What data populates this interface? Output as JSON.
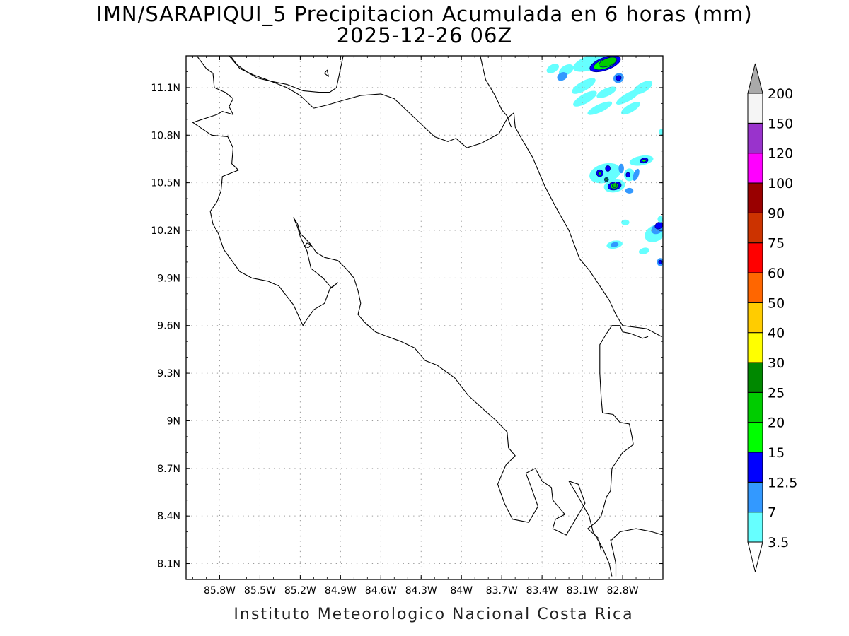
{
  "title": {
    "line1": "IMN/SARAPIQUI_5 Precipitacion Acumulada en 6 horas (mm)",
    "line2": "2025-12-26 06Z"
  },
  "footer": "Instituto Meteorologico Nacional Costa Rica",
  "map": {
    "lon_range": [
      -86.05,
      -82.5
    ],
    "lat_range": [
      8.0,
      11.3
    ],
    "lon_ticks": [
      {
        "value": -85.8,
        "label": "85.8W"
      },
      {
        "value": -85.5,
        "label": "85.5W"
      },
      {
        "value": -85.2,
        "label": "85.2W"
      },
      {
        "value": -84.9,
        "label": "84.9W"
      },
      {
        "value": -84.6,
        "label": "84.6W"
      },
      {
        "value": -84.3,
        "label": "84.3W"
      },
      {
        "value": -84.0,
        "label": "84W"
      },
      {
        "value": -83.7,
        "label": "83.7W"
      },
      {
        "value": -83.4,
        "label": "83.4W"
      },
      {
        "value": -83.1,
        "label": "83.1W"
      },
      {
        "value": -82.8,
        "label": "82.8W"
      }
    ],
    "lat_ticks": [
      {
        "value": 11.1,
        "label": "11.1N"
      },
      {
        "value": 10.8,
        "label": "10.8N"
      },
      {
        "value": 10.5,
        "label": "10.5N"
      },
      {
        "value": 10.2,
        "label": "10.2N"
      },
      {
        "value": 9.9,
        "label": "9.9N"
      },
      {
        "value": 9.6,
        "label": "9.6N"
      },
      {
        "value": 9.3,
        "label": "9.3N"
      },
      {
        "value": 9.0,
        "label": "9N"
      },
      {
        "value": 8.7,
        "label": "8.7N"
      },
      {
        "value": 8.4,
        "label": "8.4N"
      },
      {
        "value": 8.1,
        "label": "8.1N"
      }
    ],
    "grid": "dotted",
    "precip_cells": [
      {
        "lon": -83.0,
        "lat": 11.27,
        "rx": 0.18,
        "ry": 0.05,
        "rot": -20,
        "mm": 3.5
      },
      {
        "lon": -82.93,
        "lat": 11.25,
        "rx": 0.12,
        "ry": 0.04,
        "rot": -20,
        "mm": 12.5
      },
      {
        "lon": -82.93,
        "lat": 11.25,
        "rx": 0.09,
        "ry": 0.03,
        "rot": -20,
        "mm": 15
      },
      {
        "lon": -82.91,
        "lat": 11.26,
        "rx": 0.07,
        "ry": 0.025,
        "rot": -20,
        "mm": 20
      },
      {
        "lon": -83.32,
        "lat": 11.22,
        "rx": 0.05,
        "ry": 0.025,
        "rot": -30,
        "mm": 3.5
      },
      {
        "lon": -83.22,
        "lat": 11.21,
        "rx": 0.06,
        "ry": 0.03,
        "rot": -30,
        "mm": 3.5
      },
      {
        "lon": -83.25,
        "lat": 11.17,
        "rx": 0.04,
        "ry": 0.025,
        "rot": -30,
        "mm": 7
      },
      {
        "lon": -82.83,
        "lat": 11.16,
        "rx": 0.04,
        "ry": 0.03,
        "rot": -30,
        "mm": 7
      },
      {
        "lon": -82.83,
        "lat": 11.16,
        "rx": 0.02,
        "ry": 0.015,
        "rot": -30,
        "mm": 12.5
      },
      {
        "lon": -83.09,
        "lat": 11.11,
        "rx": 0.1,
        "ry": 0.03,
        "rot": -30,
        "mm": 3.5
      },
      {
        "lon": -82.65,
        "lat": 11.1,
        "rx": 0.08,
        "ry": 0.03,
        "rot": -30,
        "mm": 3.5
      },
      {
        "lon": -82.92,
        "lat": 11.07,
        "rx": 0.08,
        "ry": 0.025,
        "rot": -25,
        "mm": 3.5
      },
      {
        "lon": -83.08,
        "lat": 11.03,
        "rx": 0.1,
        "ry": 0.03,
        "rot": -30,
        "mm": 3.5
      },
      {
        "lon": -82.97,
        "lat": 10.97,
        "rx": 0.1,
        "ry": 0.025,
        "rot": -25,
        "mm": 3.5
      },
      {
        "lon": -82.76,
        "lat": 11.04,
        "rx": 0.1,
        "ry": 0.025,
        "rot": -30,
        "mm": 3.5
      },
      {
        "lon": -82.74,
        "lat": 10.97,
        "rx": 0.08,
        "ry": 0.025,
        "rot": -30,
        "mm": 3.5
      },
      {
        "lon": -82.51,
        "lat": 10.82,
        "rx": 0.02,
        "ry": 0.02,
        "rot": 0,
        "mm": 3.5
      },
      {
        "lon": -82.93,
        "lat": 10.56,
        "rx": 0.12,
        "ry": 0.06,
        "rot": -15,
        "mm": 3.5
      },
      {
        "lon": -82.66,
        "lat": 10.64,
        "rx": 0.09,
        "ry": 0.03,
        "rot": -10,
        "mm": 3.5
      },
      {
        "lon": -82.64,
        "lat": 10.64,
        "rx": 0.03,
        "ry": 0.015,
        "rot": -10,
        "mm": 12.5
      },
      {
        "lon": -82.64,
        "lat": 10.64,
        "rx": 0.015,
        "ry": 0.008,
        "rot": -10,
        "mm": 15
      },
      {
        "lon": -82.75,
        "lat": 10.55,
        "rx": 0.04,
        "ry": 0.04,
        "rot": 0,
        "mm": 3.5
      },
      {
        "lon": -82.76,
        "lat": 10.55,
        "rx": 0.015,
        "ry": 0.015,
        "rot": 0,
        "mm": 12.5
      },
      {
        "lon": -82.86,
        "lat": 10.48,
        "rx": 0.08,
        "ry": 0.04,
        "rot": -10,
        "mm": 3.5
      },
      {
        "lon": -82.86,
        "lat": 10.48,
        "rx": 0.05,
        "ry": 0.025,
        "rot": -10,
        "mm": 12.5
      },
      {
        "lon": -82.86,
        "lat": 10.48,
        "rx": 0.03,
        "ry": 0.018,
        "rot": -10,
        "mm": 15
      },
      {
        "lon": -82.86,
        "lat": 10.48,
        "rx": 0.018,
        "ry": 0.012,
        "rot": -10,
        "mm": 20
      },
      {
        "lon": -82.97,
        "lat": 10.56,
        "rx": 0.025,
        "ry": 0.022,
        "rot": 0,
        "mm": 12.5
      },
      {
        "lon": -82.97,
        "lat": 10.56,
        "rx": 0.012,
        "ry": 0.011,
        "rot": 0,
        "mm": 20
      },
      {
        "lon": -82.91,
        "lat": 10.59,
        "rx": 0.018,
        "ry": 0.018,
        "rot": 0,
        "mm": 12.5
      },
      {
        "lon": -82.92,
        "lat": 10.52,
        "rx": 0.015,
        "ry": 0.013,
        "rot": 0,
        "mm": 15
      },
      {
        "lon": -82.92,
        "lat": 10.52,
        "rx": 0.008,
        "ry": 0.007,
        "rot": 0,
        "mm": 20
      },
      {
        "lon": -82.81,
        "lat": 10.59,
        "rx": 0.02,
        "ry": 0.03,
        "rot": 0,
        "mm": 7
      },
      {
        "lon": -82.7,
        "lat": 10.55,
        "rx": 0.02,
        "ry": 0.04,
        "rot": 20,
        "mm": 7
      },
      {
        "lon": -82.75,
        "lat": 10.45,
        "rx": 0.03,
        "ry": 0.018,
        "rot": 0,
        "mm": 7
      },
      {
        "lon": -82.78,
        "lat": 10.25,
        "rx": 0.03,
        "ry": 0.018,
        "rot": 0,
        "mm": 3.5
      },
      {
        "lon": -82.56,
        "lat": 10.18,
        "rx": 0.08,
        "ry": 0.05,
        "rot": -30,
        "mm": 3.5
      },
      {
        "lon": -82.54,
        "lat": 10.21,
        "rx": 0.05,
        "ry": 0.03,
        "rot": -30,
        "mm": 7
      },
      {
        "lon": -82.53,
        "lat": 10.23,
        "rx": 0.03,
        "ry": 0.02,
        "rot": -30,
        "mm": 12.5
      },
      {
        "lon": -82.52,
        "lat": 10.27,
        "rx": 0.02,
        "ry": 0.02,
        "rot": 0,
        "mm": 3.5
      },
      {
        "lon": -82.86,
        "lat": 10.11,
        "rx": 0.06,
        "ry": 0.025,
        "rot": -10,
        "mm": 3.5
      },
      {
        "lon": -82.86,
        "lat": 10.11,
        "rx": 0.03,
        "ry": 0.015,
        "rot": -10,
        "mm": 7
      },
      {
        "lon": -82.64,
        "lat": 10.07,
        "rx": 0.04,
        "ry": 0.02,
        "rot": -15,
        "mm": 3.5
      },
      {
        "lon": -82.52,
        "lat": 10.0,
        "rx": 0.025,
        "ry": 0.025,
        "rot": 0,
        "mm": 7
      },
      {
        "lon": -82.52,
        "lat": 10.0,
        "rx": 0.012,
        "ry": 0.012,
        "rot": 0,
        "mm": 12.5
      }
    ],
    "coastline": [
      [
        [
          -85.97,
          11.3
        ],
        [
          -85.9,
          11.22
        ],
        [
          -85.85,
          11.19
        ],
        [
          -85.84,
          11.1
        ],
        [
          -85.76,
          11.07
        ],
        [
          -85.7,
          11.03
        ],
        [
          -85.73,
          10.98
        ],
        [
          -85.7,
          10.93
        ],
        [
          -85.78,
          10.95
        ],
        [
          -85.82,
          10.93
        ],
        [
          -86.0,
          10.88
        ],
        [
          -85.86,
          10.8
        ],
        [
          -85.74,
          10.79
        ],
        [
          -85.7,
          10.72
        ],
        [
          -85.71,
          10.62
        ],
        [
          -85.66,
          10.58
        ],
        [
          -85.78,
          10.54
        ],
        [
          -85.79,
          10.45
        ],
        [
          -85.82,
          10.38
        ],
        [
          -85.87,
          10.32
        ],
        [
          -85.85,
          10.24
        ],
        [
          -85.81,
          10.18
        ],
        [
          -85.77,
          10.08
        ],
        [
          -85.65,
          9.94
        ],
        [
          -85.56,
          9.9
        ],
        [
          -85.44,
          9.88
        ],
        [
          -85.36,
          9.85
        ],
        [
          -85.25,
          9.73
        ],
        [
          -85.18,
          9.6
        ],
        [
          -85.15,
          9.64
        ],
        [
          -85.1,
          9.7
        ],
        [
          -85.02,
          9.74
        ],
        [
          -84.98,
          9.83
        ],
        [
          -84.92,
          9.87
        ],
        [
          -84.97,
          9.84
        ],
        [
          -85.03,
          9.9
        ],
        [
          -85.12,
          9.96
        ],
        [
          -85.15,
          10.07
        ],
        [
          -85.2,
          10.16
        ],
        [
          -85.22,
          10.22
        ],
        [
          -85.25,
          10.28
        ],
        [
          -85.22,
          10.24
        ],
        [
          -85.2,
          10.18
        ],
        [
          -85.13,
          10.12
        ],
        [
          -85.08,
          10.06
        ],
        [
          -85.02,
          10.03
        ],
        [
          -84.92,
          10.01
        ],
        [
          -84.86,
          9.96
        ],
        [
          -84.8,
          9.9
        ],
        [
          -84.77,
          9.82
        ],
        [
          -84.75,
          9.74
        ],
        [
          -84.77,
          9.67
        ],
        [
          -84.72,
          9.62
        ],
        [
          -84.64,
          9.56
        ],
        [
          -84.55,
          9.53
        ],
        [
          -84.45,
          9.5
        ],
        [
          -84.35,
          9.46
        ],
        [
          -84.27,
          9.38
        ],
        [
          -84.18,
          9.35
        ],
        [
          -84.05,
          9.27
        ],
        [
          -83.95,
          9.16
        ],
        [
          -83.82,
          9.06
        ],
        [
          -83.74,
          9.0
        ],
        [
          -83.66,
          8.93
        ],
        [
          -83.65,
          8.83
        ],
        [
          -83.6,
          8.78
        ],
        [
          -83.67,
          8.72
        ],
        [
          -83.73,
          8.6
        ],
        [
          -83.68,
          8.48
        ],
        [
          -83.62,
          8.38
        ],
        [
          -83.5,
          8.36
        ],
        [
          -83.43,
          8.46
        ],
        [
          -83.48,
          8.58
        ],
        [
          -83.52,
          8.67
        ],
        [
          -83.45,
          8.7
        ],
        [
          -83.4,
          8.62
        ],
        [
          -83.33,
          8.58
        ],
        [
          -83.32,
          8.5
        ],
        [
          -83.23,
          8.41
        ],
        [
          -83.3,
          8.38
        ],
        [
          -83.32,
          8.32
        ],
        [
          -83.22,
          8.28
        ],
        [
          -83.15,
          8.38
        ],
        [
          -83.08,
          8.48
        ],
        [
          -83.13,
          8.6
        ],
        [
          -83.2,
          8.62
        ],
        [
          -83.15,
          8.55
        ],
        [
          -83.05,
          8.4
        ],
        [
          -83.02,
          8.3
        ],
        [
          -82.95,
          8.2
        ],
        [
          -82.9,
          8.1
        ],
        [
          -82.88,
          8.02
        ]
      ],
      [
        [
          -82.85,
          8.02
        ],
        [
          -82.85,
          8.1
        ],
        [
          -82.89,
          8.25
        ],
        [
          -82.88,
          8.25
        ],
        [
          -82.82,
          8.3
        ],
        [
          -82.7,
          8.32
        ],
        [
          -82.58,
          8.3
        ],
        [
          -82.5,
          8.28
        ]
      ],
      [
        [
          -82.96,
          8.18
        ],
        [
          -82.98,
          8.26
        ],
        [
          -83.06,
          8.32
        ],
        [
          -83.0,
          8.36
        ],
        [
          -82.96,
          8.4
        ],
        [
          -82.92,
          8.52
        ],
        [
          -82.89,
          8.56
        ],
        [
          -82.88,
          8.7
        ],
        [
          -82.8,
          8.8
        ],
        [
          -82.72,
          8.85
        ],
        [
          -82.73,
          8.9
        ],
        [
          -82.75,
          8.98
        ],
        [
          -82.82,
          8.99
        ],
        [
          -82.87,
          9.04
        ],
        [
          -82.95,
          9.05
        ],
        [
          -82.96,
          9.15
        ],
        [
          -82.97,
          9.3
        ],
        [
          -82.97,
          9.48
        ],
        [
          -82.92,
          9.55
        ],
        [
          -82.88,
          9.6
        ],
        [
          -82.82,
          9.6
        ],
        [
          -82.8,
          9.56
        ],
        [
          -82.74,
          9.55
        ],
        [
          -82.65,
          9.52
        ],
        [
          -82.61,
          9.53
        ]
      ],
      [
        [
          -82.51,
          9.53
        ],
        [
          -82.62,
          9.58
        ],
        [
          -82.8,
          9.6
        ],
        [
          -82.85,
          9.67
        ],
        [
          -82.9,
          9.76
        ],
        [
          -82.97,
          9.85
        ],
        [
          -83.05,
          9.95
        ],
        [
          -83.12,
          10.02
        ],
        [
          -83.2,
          10.2
        ],
        [
          -83.3,
          10.35
        ],
        [
          -83.38,
          10.48
        ],
        [
          -83.47,
          10.66
        ],
        [
          -83.56,
          10.79
        ],
        [
          -83.6,
          10.85
        ],
        [
          -83.61,
          10.94
        ],
        [
          -83.64,
          10.92
        ],
        [
          -83.67,
          10.89
        ],
        [
          -83.72,
          10.81
        ],
        [
          -83.85,
          10.75
        ],
        [
          -83.96,
          10.72
        ],
        [
          -84.04,
          10.78
        ],
        [
          -84.1,
          10.76
        ],
        [
          -84.2,
          10.79
        ],
        [
          -84.3,
          10.87
        ],
        [
          -84.4,
          10.95
        ],
        [
          -84.5,
          11.03
        ],
        [
          -84.6,
          11.06
        ],
        [
          -84.75,
          11.05
        ],
        [
          -84.88,
          11.02
        ],
        [
          -85.0,
          10.99
        ],
        [
          -85.1,
          10.97
        ]
      ],
      [
        [
          -85.1,
          10.97
        ],
        [
          -85.2,
          11.05
        ],
        [
          -85.3,
          11.1
        ],
        [
          -85.45,
          11.15
        ],
        [
          -85.55,
          11.18
        ],
        [
          -85.65,
          11.22
        ],
        [
          -85.72,
          11.3
        ]
      ],
      [
        [
          -84.88,
          11.3
        ],
        [
          -84.9,
          11.22
        ],
        [
          -84.93,
          11.1
        ],
        [
          -84.98,
          11.07
        ],
        [
          -85.06,
          11.07
        ],
        [
          -85.18,
          11.08
        ],
        [
          -85.3,
          11.12
        ],
        [
          -85.42,
          11.14
        ],
        [
          -85.52,
          11.16
        ],
        [
          -85.6,
          11.2
        ],
        [
          -85.68,
          11.25
        ],
        [
          -85.73,
          11.3
        ]
      ],
      [
        [
          -83.86,
          11.3
        ],
        [
          -83.82,
          11.15
        ],
        [
          -83.75,
          11.05
        ],
        [
          -83.7,
          10.96
        ],
        [
          -83.66,
          10.92
        ],
        [
          -83.63,
          10.85
        ]
      ],
      [
        [
          -85.02,
          11.19
        ],
        [
          -84.99,
          11.17
        ],
        [
          -85.0,
          11.21
        ],
        [
          -85.02,
          11.19
        ]
      ],
      [
        [
          -85.17,
          10.1
        ],
        [
          -85.14,
          10.09
        ],
        [
          -85.12,
          10.11
        ],
        [
          -85.15,
          10.12
        ],
        [
          -85.17,
          10.1
        ]
      ]
    ]
  },
  "legend": {
    "bins": [
      {
        "upper": "7",
        "color": "#66ffff"
      },
      {
        "upper": "12.5",
        "color": "#3399ff"
      },
      {
        "upper": "15",
        "color": "#0000ff"
      },
      {
        "upper": "20",
        "color": "#00ff00"
      },
      {
        "upper": "25",
        "color": "#00cc00"
      },
      {
        "upper": "30",
        "color": "#008800"
      },
      {
        "upper": "40",
        "color": "#ffff00"
      },
      {
        "upper": "50",
        "color": "#ffcc00"
      },
      {
        "upper": "60",
        "color": "#ff6600"
      },
      {
        "upper": "75",
        "color": "#ff0000"
      },
      {
        "upper": "90",
        "color": "#cc3300"
      },
      {
        "upper": "100",
        "color": "#990000"
      },
      {
        "upper": "120",
        "color": "#ff00ff"
      },
      {
        "upper": "150",
        "color": "#9933cc"
      },
      {
        "upper": "200",
        "color": "#f5f5f5"
      }
    ],
    "lowest_label": "3.5",
    "below_color": "#ffffff",
    "above_color": "#aaaaaa"
  }
}
